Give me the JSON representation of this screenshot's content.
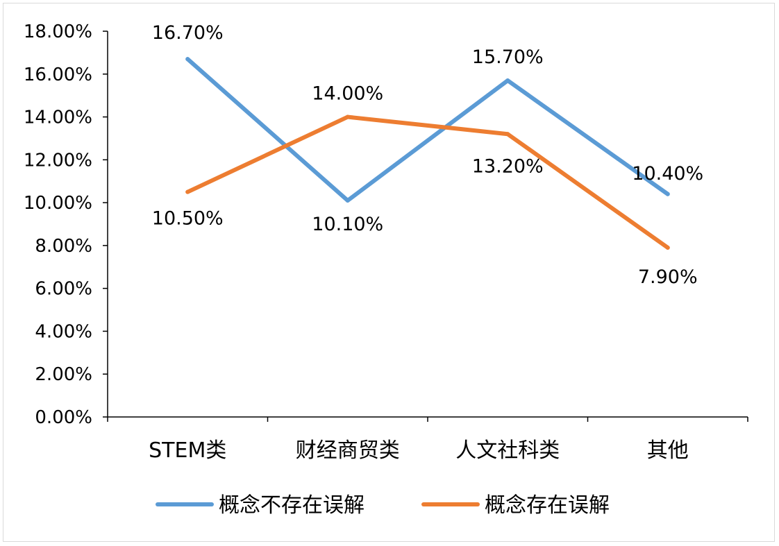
{
  "chart_data": {
    "type": "line",
    "categories": [
      "STEM类",
      "财经商贸类",
      "人文社科类",
      "其他"
    ],
    "series": [
      {
        "name": "概念不存在误解",
        "values": [
          16.7,
          10.1,
          15.7,
          10.4
        ],
        "labels": [
          "16.70%",
          "10.10%",
          "15.70%",
          "10.40%"
        ],
        "color": "#5b9bd5"
      },
      {
        "name": "概念存在误解",
        "values": [
          10.5,
          14.0,
          13.2,
          7.9
        ],
        "labels": [
          "10.50%",
          "14.00%",
          "13.20%",
          "7.90%"
        ],
        "color": "#ed7d31"
      }
    ],
    "ylim": [
      0,
      18
    ],
    "yticks": [
      0,
      2,
      4,
      6,
      8,
      10,
      12,
      14,
      16,
      18
    ],
    "ytick_labels": [
      "0.00%",
      "2.00%",
      "4.00%",
      "6.00%",
      "8.00%",
      "10.00%",
      "12.00%",
      "14.00%",
      "16.00%",
      "18.00%"
    ],
    "grid": false,
    "legend_position": "bottom"
  }
}
